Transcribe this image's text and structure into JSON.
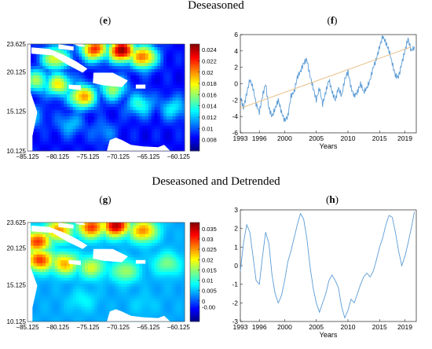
{
  "sections": {
    "top_title": "Deseasoned",
    "bottom_title": "Deseasoned and Detrended"
  },
  "panels": {
    "e": "e",
    "f": "f",
    "g": "g",
    "h": "h"
  },
  "colors": {
    "line": "#5b9bd5",
    "trend": "#e8c08a",
    "map_low": "#00008f",
    "map_high": "#8f0000",
    "land": "#ffffff"
  },
  "chart_data": [
    {
      "id": "e",
      "type": "heatmap",
      "x_ticks": [
        "−85.125",
        "−80.125",
        "−75.125",
        "−70.125",
        "−65.125",
        "−60.125"
      ],
      "y_ticks": [
        "23.625",
        "20.125",
        "15.125",
        "10.125"
      ],
      "xlim": [
        -85.125,
        -59.125
      ],
      "ylim": [
        10.125,
        23.625
      ],
      "colorbar": {
        "min": 0.006,
        "max": 0.025,
        "colormap": "jet",
        "ticks": [
          "0.024",
          "0.022",
          "0.02",
          "0.018",
          "0.016",
          "0.014",
          "0.012",
          "0.01",
          "0.008"
        ],
        "tick_values": [
          0.024,
          0.022,
          0.02,
          0.018,
          0.016,
          0.014,
          0.012,
          0.01,
          0.008
        ]
      },
      "hotspots": [
        {
          "lon": -80.5,
          "lat": 21.8,
          "value": 0.018
        },
        {
          "lon": -74.0,
          "lat": 23.0,
          "value": 0.022
        },
        {
          "lon": -69.5,
          "lat": 22.8,
          "value": 0.025
        },
        {
          "lon": -66.0,
          "lat": 22.0,
          "value": 0.021
        },
        {
          "lon": -83.5,
          "lat": 19.0,
          "value": 0.016
        },
        {
          "lon": -80.0,
          "lat": 18.5,
          "value": 0.018
        },
        {
          "lon": -76.0,
          "lat": 17.0,
          "value": 0.02
        },
        {
          "lon": -71.0,
          "lat": 18.0,
          "value": 0.016
        },
        {
          "lon": -66.5,
          "lat": 16.0,
          "value": 0.014
        },
        {
          "lon": -61.0,
          "lat": 15.5,
          "value": 0.013
        },
        {
          "lon": -78.0,
          "lat": 13.5,
          "value": 0.012
        },
        {
          "lon": -72.5,
          "lat": 12.5,
          "value": 0.011
        },
        {
          "lon": -84.5,
          "lat": 14.5,
          "value": 0.012
        }
      ],
      "background_value": 0.0085
    },
    {
      "id": "f",
      "type": "line",
      "x_ticks": [
        "1993",
        "1996",
        "2000",
        "2005",
        "2010",
        "2015",
        "2019"
      ],
      "x_tick_values": [
        1993,
        1996,
        2000,
        2005,
        2010,
        2015,
        2019
      ],
      "xlim": [
        1993,
        2020.8
      ],
      "ylim": [
        -6,
        6
      ],
      "y_ticks": [
        -6,
        -4,
        -2,
        0,
        2,
        4,
        6
      ],
      "xlabel": "Years",
      "trend": {
        "x": [
          1993,
          2020
        ],
        "y": [
          -3.0,
          4.5
        ]
      },
      "x": [
        1993.0,
        1993.5,
        1994.0,
        1994.5,
        1995.0,
        1995.5,
        1996.0,
        1996.5,
        1997.0,
        1997.5,
        1998.0,
        1998.5,
        1999.0,
        1999.5,
        2000.0,
        2000.5,
        2001.0,
        2001.5,
        2002.0,
        2002.5,
        2003.0,
        2003.5,
        2004.0,
        2004.5,
        2005.0,
        2005.5,
        2006.0,
        2006.5,
        2007.0,
        2007.5,
        2008.0,
        2008.5,
        2009.0,
        2009.5,
        2010.0,
        2010.5,
        2011.0,
        2011.5,
        2012.0,
        2012.5,
        2013.0,
        2013.5,
        2014.0,
        2014.5,
        2015.0,
        2015.5,
        2016.0,
        2016.5,
        2017.0,
        2017.5,
        2018.0,
        2018.5,
        2019.0,
        2019.5,
        2020.0,
        2020.5
      ],
      "y": [
        -1.5,
        -3.0,
        -1.2,
        0.5,
        -0.5,
        -2.5,
        -3.5,
        -1.5,
        0.0,
        -3.0,
        -4.0,
        -3.0,
        -2.0,
        -3.5,
        -4.5,
        -4.0,
        -1.5,
        -1.0,
        0.8,
        1.5,
        2.5,
        3.0,
        1.0,
        -0.5,
        -2.0,
        -0.5,
        -2.5,
        -1.0,
        0.5,
        -1.0,
        -2.0,
        -0.5,
        -1.5,
        0.5,
        1.5,
        -0.5,
        -1.5,
        -1.0,
        0.0,
        -1.0,
        -0.5,
        0.5,
        2.0,
        3.0,
        4.5,
        5.8,
        5.0,
        4.0,
        2.5,
        1.0,
        0.8,
        2.5,
        4.0,
        5.5,
        4.0,
        4.5
      ]
    },
    {
      "id": "g",
      "type": "heatmap",
      "x_ticks": [
        "−85.125",
        "−80.125",
        "−75.125",
        "−70.125",
        "−65.125",
        "−60.125"
      ],
      "y_ticks": [
        "23.625",
        "20.125",
        "15.125",
        "10.125"
      ],
      "xlim": [
        -85.125,
        -59.125
      ],
      "ylim": [
        10.125,
        23.625
      ],
      "colorbar": {
        "min": -0.01,
        "max": 0.038,
        "colormap": "jet",
        "ticks": [
          "0.035",
          "0.03",
          "0.025",
          "0.02",
          "0.015",
          "0.01",
          "0.005",
          "0",
          "-0.00"
        ],
        "tick_values": [
          0.035,
          0.03,
          0.025,
          0.02,
          0.015,
          0.01,
          0.005,
          0.0,
          -0.003
        ]
      },
      "hotspots": [
        {
          "lon": -83.5,
          "lat": 21.0,
          "value": 0.03
        },
        {
          "lon": -80.0,
          "lat": 22.5,
          "value": 0.026
        },
        {
          "lon": -74.5,
          "lat": 23.0,
          "value": 0.03
        },
        {
          "lon": -70.5,
          "lat": 23.2,
          "value": 0.036
        },
        {
          "lon": -66.0,
          "lat": 22.5,
          "value": 0.026
        },
        {
          "lon": -83.0,
          "lat": 18.5,
          "value": 0.03
        },
        {
          "lon": -79.0,
          "lat": 18.0,
          "value": 0.024
        },
        {
          "lon": -74.5,
          "lat": 17.5,
          "value": 0.018
        },
        {
          "lon": -69.0,
          "lat": 17.0,
          "value": 0.016
        },
        {
          "lon": -62.0,
          "lat": 18.0,
          "value": 0.014
        },
        {
          "lon": -76.0,
          "lat": 13.0,
          "value": 0.008
        },
        {
          "lon": -66.0,
          "lat": 12.5,
          "value": 0.006
        }
      ],
      "background_value": 0.004
    },
    {
      "id": "h",
      "type": "line",
      "x_ticks": [
        "1993",
        "1996",
        "2000",
        "2005",
        "2010",
        "2015",
        "2019"
      ],
      "x_tick_values": [
        1993,
        1996,
        2000,
        2005,
        2010,
        2015,
        2019
      ],
      "xlim": [
        1993,
        2020.8
      ],
      "ylim": [
        -3,
        3
      ],
      "y_ticks": [
        -3,
        -2,
        -1,
        0,
        1,
        2,
        3
      ],
      "xlabel": "Years",
      "x": [
        1993.0,
        1993.5,
        1994.0,
        1994.5,
        1995.0,
        1995.5,
        1996.0,
        1996.5,
        1997.0,
        1997.5,
        1998.0,
        1998.5,
        1999.0,
        1999.5,
        2000.0,
        2000.5,
        2001.0,
        2001.5,
        2002.0,
        2002.5,
        2003.0,
        2003.5,
        2004.0,
        2004.5,
        2005.0,
        2005.5,
        2006.0,
        2006.5,
        2007.0,
        2007.5,
        2008.0,
        2008.5,
        2009.0,
        2009.5,
        2010.0,
        2010.5,
        2011.0,
        2011.5,
        2012.0,
        2012.5,
        2013.0,
        2013.5,
        2014.0,
        2014.5,
        2015.0,
        2015.5,
        2016.0,
        2016.5,
        2017.0,
        2017.5,
        2018.0,
        2018.5,
        2019.0,
        2019.5,
        2020.0,
        2020.5
      ],
      "y": [
        -0.3,
        1.2,
        2.2,
        1.8,
        0.5,
        -0.8,
        -1.0,
        0.5,
        1.8,
        1.2,
        -0.5,
        -1.5,
        -2.0,
        -1.6,
        -0.8,
        0.2,
        0.8,
        1.5,
        2.2,
        2.8,
        2.5,
        1.5,
        0.0,
        -1.2,
        -2.0,
        -2.5,
        -2.0,
        -1.5,
        -0.8,
        -0.5,
        -0.8,
        -1.2,
        -2.2,
        -2.8,
        -2.4,
        -1.8,
        -2.0,
        -1.5,
        -1.0,
        -0.6,
        -0.4,
        -0.6,
        -0.3,
        0.3,
        1.0,
        1.5,
        2.2,
        2.7,
        2.6,
        1.8,
        0.8,
        0.0,
        0.5,
        1.2,
        2.0,
        2.9
      ]
    }
  ]
}
